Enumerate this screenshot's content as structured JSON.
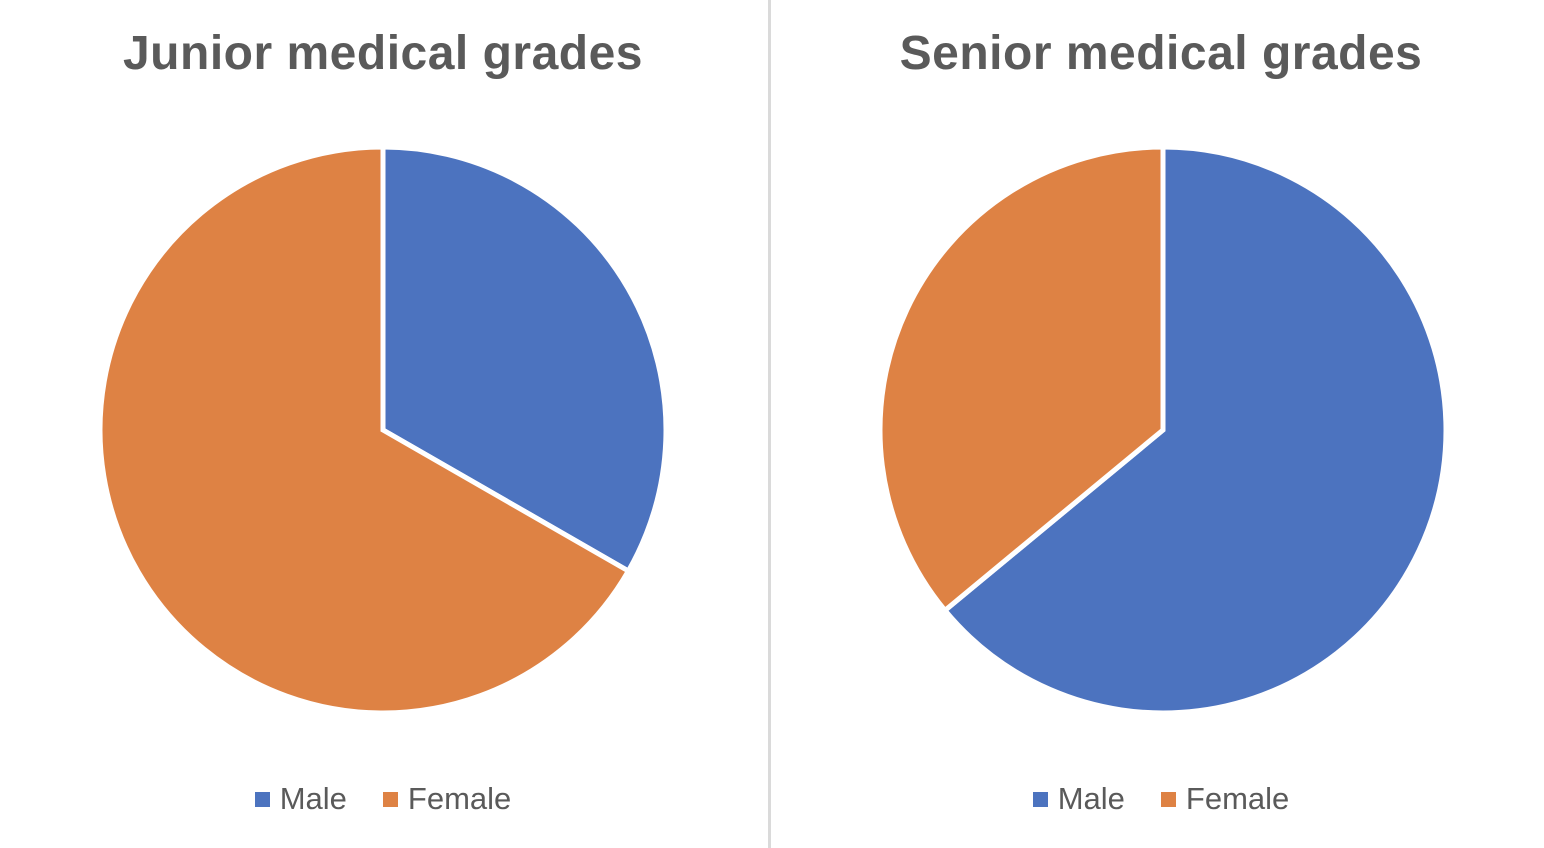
{
  "theme": {
    "background_color": "#FFFFFF",
    "title_color": "#5A5A5A",
    "legend_text_color": "#5A5A5A",
    "divider_color": "#DADADA",
    "slice_separator_color": "#FFFFFF",
    "male_color": "#4C73BF",
    "female_color": "#DE8244"
  },
  "chart_data": [
    {
      "type": "pie",
      "title": "Junior medical grades",
      "labels": [
        "Male",
        "Female"
      ],
      "values": [
        33.3,
        66.7
      ],
      "colors": [
        "#4C73BF",
        "#DE8244"
      ],
      "start_angle_deg": 0,
      "direction": "clockwise",
      "legend_position": "bottom",
      "data_labels": "none"
    },
    {
      "type": "pie",
      "title": "Senior medical grades",
      "labels": [
        "Male",
        "Female"
      ],
      "values": [
        64,
        36
      ],
      "colors": [
        "#4C73BF",
        "#DE8244"
      ],
      "start_angle_deg": 0,
      "direction": "clockwise",
      "legend_position": "bottom",
      "data_labels": "none"
    }
  ]
}
